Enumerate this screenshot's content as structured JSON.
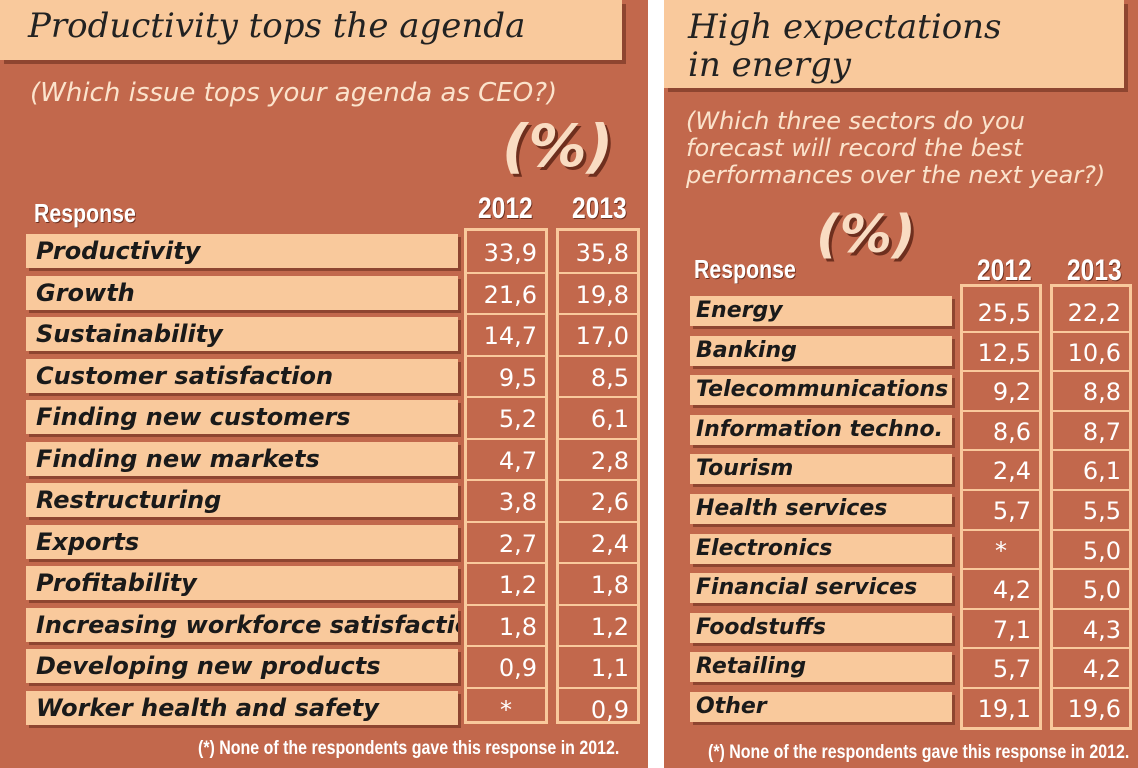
{
  "chart_data": [
    {
      "type": "table",
      "title": "Productivity tops the agenda",
      "subtitle": "(Which issue tops your agenda as CEO?)",
      "unit": "(%)",
      "header": {
        "response": "Response",
        "y1": "2012",
        "y2": "2013"
      },
      "rows": [
        {
          "label": "Productivity",
          "v2012": "33,9",
          "v2013": "35,8"
        },
        {
          "label": "Growth",
          "v2012": "21,6",
          "v2013": "19,8"
        },
        {
          "label": "Sustainability",
          "v2012": "14,7",
          "v2013": "17,0"
        },
        {
          "label": "Customer satisfaction",
          "v2012": "9,5",
          "v2013": "8,5"
        },
        {
          "label": "Finding new customers",
          "v2012": "5,2",
          "v2013": "6,1"
        },
        {
          "label": "Finding new markets",
          "v2012": "4,7",
          "v2013": "2,8"
        },
        {
          "label": "Restructuring",
          "v2012": "3,8",
          "v2013": "2,6"
        },
        {
          "label": "Exports",
          "v2012": "2,7",
          "v2013": "2,4"
        },
        {
          "label": "Profitability",
          "v2012": "1,2",
          "v2013": "1,8"
        },
        {
          "label": "Increasing workforce satisfaction",
          "v2012": "1,8",
          "v2013": "1,2"
        },
        {
          "label": "Developing new products",
          "v2012": "0,9",
          "v2013": "1,1"
        },
        {
          "label": "Worker health and safety",
          "v2012": "*",
          "v2013": "0,9"
        }
      ],
      "footnote": "(*) None of the respondents gave this response in 2012."
    },
    {
      "type": "table",
      "title": "High expectations\nin energy",
      "subtitle": "(Which three sectors do you\nforecast will record the best\nperformances over the next  year?)",
      "unit": "(%)",
      "header": {
        "response": "Response",
        "y1": "2012",
        "y2": "2013"
      },
      "rows": [
        {
          "label": "Energy",
          "v2012": "25,5",
          "v2013": "22,2"
        },
        {
          "label": "Banking",
          "v2012": "12,5",
          "v2013": "10,6"
        },
        {
          "label": "Telecommunications",
          "v2012": "9,2",
          "v2013": "8,8"
        },
        {
          "label": "Information techno.",
          "v2012": "8,6",
          "v2013": "8,7"
        },
        {
          "label": "Tourism",
          "v2012": "2,4",
          "v2013": "6,1"
        },
        {
          "label": "Health services",
          "v2012": "5,7",
          "v2013": "5,5"
        },
        {
          "label": "Electronics",
          "v2012": "*",
          "v2013": "5,0"
        },
        {
          "label": "Financial services",
          "v2012": "4,2",
          "v2013": "5,0"
        },
        {
          "label": "Foodstuffs",
          "v2012": "7,1",
          "v2013": "4,3"
        },
        {
          "label": "Retailing",
          "v2012": "5,7",
          "v2013": "4,2"
        },
        {
          "label": "Other",
          "v2012": "19,1",
          "v2013": "19,6"
        }
      ],
      "footnote": "(*) None of the respondents gave this response in 2012."
    }
  ]
}
